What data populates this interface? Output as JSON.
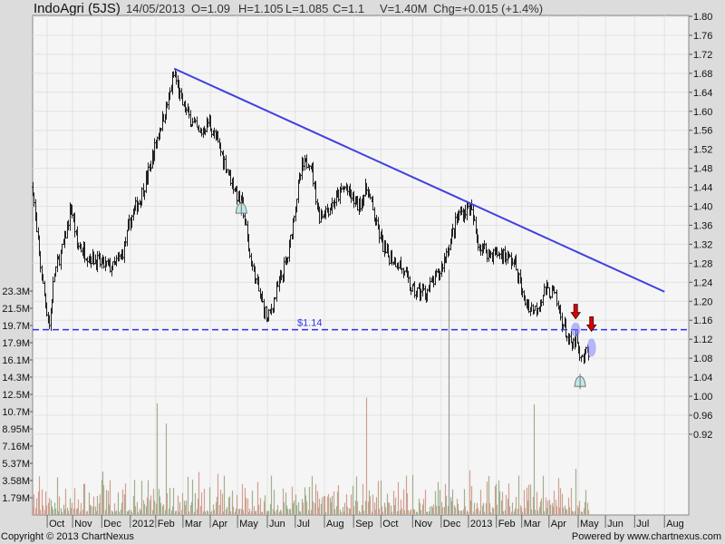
{
  "header": {
    "title": "IndoAgri (5JS)",
    "date": "14/05/2013",
    "open": "O=1.09",
    "high": "H=1.105",
    "low": "L=1.085",
    "close": "C=1.1",
    "volume": "V=1.40M",
    "change": "Chg=+0.015 (+1.4%)"
  },
  "footer": {
    "copyright": "Copyright © 2013 ChartNexus",
    "powered": "Powered by www.chartnexus.com"
  },
  "chart_data": {
    "type": "ohlc-bar",
    "title": "IndoAgri (5JS)",
    "price_axis": {
      "min": 0.92,
      "max": 1.8,
      "step": 0.04,
      "ticks": [
        "1.80",
        "1.76",
        "1.72",
        "1.68",
        "1.64",
        "1.60",
        "1.56",
        "1.52",
        "1.48",
        "1.44",
        "1.40",
        "1.36",
        "1.32",
        "1.28",
        "1.24",
        "1.20",
        "1.16",
        "1.12",
        "1.08",
        "1.04",
        "1.00",
        "0.96",
        "0.92"
      ]
    },
    "volume_axis": {
      "ticks": [
        "23.3M",
        "21.5M",
        "19.7M",
        "17.9M",
        "16.1M",
        "14.3M",
        "12.5M",
        "10.7M",
        "8.95M",
        "7.16M",
        "5.37M",
        "3.58M",
        "1.79M"
      ],
      "step_millions": 1.79
    },
    "x_ticks": [
      "Oct",
      "Nov",
      "Dec",
      "2012",
      "Feb",
      "Mar",
      "Apr",
      "May",
      "Jun",
      "Jul",
      "Aug",
      "Sep",
      "Oct",
      "Nov",
      "Dec",
      "2013",
      "Feb",
      "Mar",
      "Apr",
      "May",
      "Jun",
      "Jul",
      "Aug"
    ],
    "x_tick_weeks": [
      2.3,
      6.3,
      10.9,
      15.4,
      19.4,
      23.7,
      28,
      32.3,
      37,
      41.4,
      46,
      50.6,
      54.9,
      59.9,
      64.4,
      68.7,
      73.1,
      77.1,
      81.4,
      86,
      90.3,
      94.9,
      99.6
    ],
    "price_path": [
      {
        "week": 0,
        "close": 1.44
      },
      {
        "week": 0.6,
        "close": 1.34
      },
      {
        "week": 1.7,
        "close": 1.22
      },
      {
        "week": 2.6,
        "close": 1.15
      },
      {
        "week": 3.4,
        "close": 1.26
      },
      {
        "week": 4.9,
        "close": 1.32
      },
      {
        "week": 6,
        "close": 1.4
      },
      {
        "week": 7,
        "close": 1.32
      },
      {
        "week": 8.4,
        "close": 1.3
      },
      {
        "week": 10.6,
        "close": 1.28
      },
      {
        "week": 12.7,
        "close": 1.27
      },
      {
        "week": 14.1,
        "close": 1.3
      },
      {
        "week": 15.6,
        "close": 1.38
      },
      {
        "week": 17,
        "close": 1.42
      },
      {
        "week": 18.4,
        "close": 1.48
      },
      {
        "week": 19.9,
        "close": 1.56
      },
      {
        "week": 21.3,
        "close": 1.62
      },
      {
        "week": 22.3,
        "close": 1.68
      },
      {
        "week": 23.4,
        "close": 1.62
      },
      {
        "week": 24.9,
        "close": 1.58
      },
      {
        "week": 26.3,
        "close": 1.55
      },
      {
        "week": 27.7,
        "close": 1.58
      },
      {
        "week": 28.9,
        "close": 1.54
      },
      {
        "week": 30.6,
        "close": 1.48
      },
      {
        "week": 32.3,
        "close": 1.42
      },
      {
        "week": 33.1,
        "close": 1.4
      },
      {
        "week": 34.1,
        "close": 1.3
      },
      {
        "week": 35.6,
        "close": 1.22
      },
      {
        "week": 37,
        "close": 1.16
      },
      {
        "week": 38.4,
        "close": 1.22
      },
      {
        "week": 40.3,
        "close": 1.3
      },
      {
        "week": 41.3,
        "close": 1.4
      },
      {
        "week": 42.4,
        "close": 1.48
      },
      {
        "week": 43.7,
        "close": 1.5
      },
      {
        "week": 45.1,
        "close": 1.38
      },
      {
        "week": 47,
        "close": 1.4
      },
      {
        "week": 49.1,
        "close": 1.44
      },
      {
        "week": 51.3,
        "close": 1.4
      },
      {
        "week": 52.7,
        "close": 1.44
      },
      {
        "week": 54.1,
        "close": 1.36
      },
      {
        "week": 55.6,
        "close": 1.3
      },
      {
        "week": 57.7,
        "close": 1.28
      },
      {
        "week": 59.9,
        "close": 1.22
      },
      {
        "week": 62,
        "close": 1.22
      },
      {
        "week": 64.1,
        "close": 1.26
      },
      {
        "week": 65.6,
        "close": 1.32
      },
      {
        "week": 67,
        "close": 1.38
      },
      {
        "week": 68.9,
        "close": 1.4
      },
      {
        "week": 70.3,
        "close": 1.32
      },
      {
        "week": 72,
        "close": 1.3
      },
      {
        "week": 74.1,
        "close": 1.3
      },
      {
        "week": 76,
        "close": 1.28
      },
      {
        "week": 77.4,
        "close": 1.2
      },
      {
        "week": 79.1,
        "close": 1.18
      },
      {
        "week": 80.6,
        "close": 1.22
      },
      {
        "week": 82,
        "close": 1.22
      },
      {
        "week": 83.4,
        "close": 1.16
      },
      {
        "week": 84.9,
        "close": 1.1
      },
      {
        "week": 85.6,
        "close": 1.12
      },
      {
        "week": 86.3,
        "close": 1.07
      },
      {
        "week": 87.7,
        "close": 1.1
      }
    ],
    "volume_spikes_millions": [
      {
        "week": 19.6,
        "value": 11.6
      },
      {
        "week": 21,
        "value": 9.5
      },
      {
        "week": 52.7,
        "value": 12.2
      },
      {
        "week": 65.6,
        "value": 25.5
      },
      {
        "week": 79.1,
        "value": 11.5
      },
      {
        "week": 85.6,
        "value": 4.8
      }
    ],
    "trendline": {
      "from": {
        "week": 22.3,
        "price": 1.69
      },
      "to": {
        "week": 99.6,
        "price": 1.22
      },
      "color": "#4040e0"
    },
    "support": {
      "price": 1.14,
      "label": "$1.14",
      "color": "#3030f0"
    },
    "alerts": [
      {
        "week": 32.9,
        "price": 1.395
      },
      {
        "week": 86.3,
        "price": 1.03
      }
    ],
    "arrows": [
      {
        "week": 85.6,
        "price": 1.14
      },
      {
        "week": 88.1,
        "price": 1.11
      }
    ],
    "colors": {
      "bar": "#222222",
      "vol_up": "#a0b08c",
      "vol_down": "#cfa090",
      "plot_bg": "#f5f5f5",
      "grid": "#e2e2e2"
    }
  }
}
